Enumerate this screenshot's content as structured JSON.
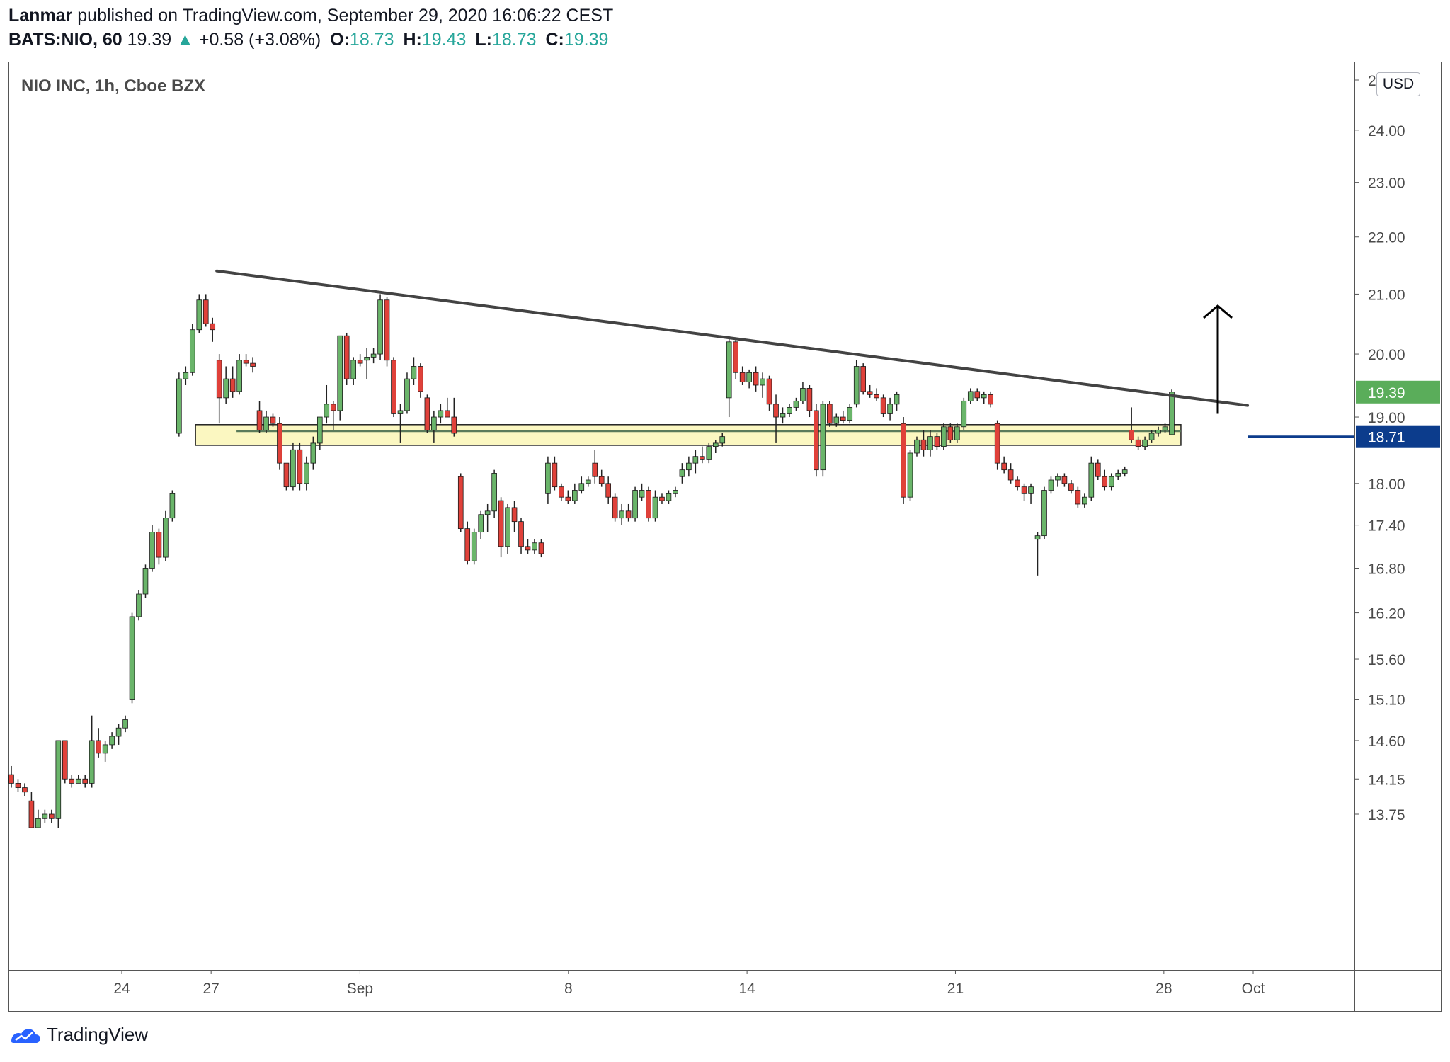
{
  "header": {
    "author": "Lanmar",
    "published_text": "published on TradingView.com, September 29, 2020 16:06:22 CEST",
    "symbol": "BATS:NIO, 60",
    "last": "19.39",
    "change_arrow": "▲",
    "change": "+0.58 (+3.08%)",
    "o_label": "O:",
    "o_value": "18.73",
    "h_label": "H:",
    "h_value": "19.43",
    "l_label": "L:",
    "l_value": "18.73",
    "c_label": "C:",
    "c_value": "19.39"
  },
  "legend": {
    "title": "NIO INC, 1h, Cboe BZX"
  },
  "currency_button": "USD",
  "footer": {
    "brand": "TradingView",
    "logo_icon": "tradingview-logo-icon"
  },
  "colors": {
    "up": "#6ab56a",
    "down": "#e0413a",
    "wick": "#222222",
    "trendline": "#434343",
    "zone_fill": "#fbf7c1",
    "zone_border": "#222222",
    "support_line": "#0c3c8c",
    "last_price_badge": "#5aad5a",
    "axis_text": "#4a4a4a"
  },
  "chart_data": {
    "type": "candlestick",
    "title": "NIO INC, 1h, Cboe BZX",
    "y_scale": "log",
    "ylim": [
      13.6,
      25.5
    ],
    "y_ticks": [
      "25.00",
      "24.00",
      "23.00",
      "22.00",
      "21.00",
      "20.00",
      "19.00",
      "18.00",
      "17.40",
      "16.80",
      "16.20",
      "15.60",
      "15.10",
      "14.60",
      "14.15",
      "13.75"
    ],
    "x_range": [
      "2020-08-20",
      "2020-10-02"
    ],
    "x_ticks": [
      {
        "label": "24",
        "date": "2020-08-24"
      },
      {
        "label": "27",
        "date": "2020-08-27"
      },
      {
        "label": "Sep",
        "date": "2020-09-01"
      },
      {
        "label": "8",
        "date": "2020-09-08"
      },
      {
        "label": "14",
        "date": "2020-09-14"
      },
      {
        "label": "21",
        "date": "2020-09-21"
      },
      {
        "label": "28",
        "date": "2020-09-28"
      },
      {
        "label": "Oct",
        "date": "2020-10-01"
      }
    ],
    "candles_ohlc": [
      [
        14.2,
        14.3,
        14.05,
        14.1
      ],
      [
        14.1,
        14.15,
        14.0,
        14.05
      ],
      [
        14.05,
        14.1,
        13.95,
        14.0
      ],
      [
        13.9,
        14.0,
        13.6,
        13.6
      ],
      [
        13.6,
        13.8,
        13.6,
        13.7
      ],
      [
        13.7,
        13.8,
        13.65,
        13.75
      ],
      [
        13.75,
        13.8,
        13.65,
        13.7
      ],
      [
        13.7,
        14.6,
        13.6,
        14.6
      ],
      [
        14.6,
        14.6,
        14.1,
        14.15
      ],
      [
        14.15,
        14.2,
        14.05,
        14.1
      ],
      [
        14.1,
        14.2,
        14.1,
        14.15
      ],
      [
        14.15,
        14.2,
        14.05,
        14.1
      ],
      [
        14.1,
        14.9,
        14.05,
        14.6
      ],
      [
        14.6,
        14.75,
        14.4,
        14.45
      ],
      [
        14.45,
        14.6,
        14.35,
        14.55
      ],
      [
        14.55,
        14.7,
        14.5,
        14.65
      ],
      [
        14.65,
        14.8,
        14.55,
        14.75
      ],
      [
        14.75,
        14.9,
        14.7,
        14.85
      ],
      [
        15.1,
        16.2,
        15.05,
        16.15
      ],
      [
        16.15,
        16.5,
        16.1,
        16.45
      ],
      [
        16.45,
        16.85,
        16.4,
        16.8
      ],
      [
        16.8,
        17.4,
        16.75,
        17.3
      ],
      [
        17.3,
        17.35,
        16.85,
        16.95
      ],
      [
        16.95,
        17.6,
        16.9,
        17.5
      ],
      [
        17.5,
        17.9,
        17.45,
        17.85
      ],
      [
        18.75,
        19.7,
        18.7,
        19.6
      ],
      [
        19.6,
        19.8,
        19.5,
        19.7
      ],
      [
        19.7,
        20.5,
        19.65,
        20.4
      ],
      [
        20.4,
        21.0,
        20.35,
        20.9
      ],
      [
        20.9,
        21.0,
        20.45,
        20.5
      ],
      [
        20.5,
        20.6,
        20.2,
        20.4
      ],
      [
        19.9,
        20.0,
        18.9,
        19.3
      ],
      [
        19.3,
        19.8,
        19.2,
        19.6
      ],
      [
        19.6,
        19.8,
        19.3,
        19.4
      ],
      [
        19.4,
        20.0,
        19.35,
        19.9
      ],
      [
        19.9,
        20.0,
        19.8,
        19.85
      ],
      [
        19.85,
        19.95,
        19.7,
        19.8
      ],
      [
        19.1,
        19.25,
        18.75,
        18.8
      ],
      [
        18.8,
        19.1,
        18.75,
        19.0
      ],
      [
        19.0,
        19.05,
        18.85,
        18.9
      ],
      [
        18.9,
        19.0,
        18.2,
        18.3
      ],
      [
        18.3,
        18.3,
        17.9,
        17.95
      ],
      [
        17.95,
        18.6,
        17.9,
        18.5
      ],
      [
        18.5,
        18.6,
        17.9,
        18.0
      ],
      [
        18.0,
        18.4,
        17.9,
        18.3
      ],
      [
        18.3,
        18.7,
        18.2,
        18.6
      ],
      [
        18.6,
        19.0,
        18.5,
        19.0
      ],
      [
        19.0,
        19.5,
        18.9,
        19.2
      ],
      [
        19.2,
        19.25,
        18.8,
        19.1
      ],
      [
        19.1,
        20.3,
        18.95,
        20.3
      ],
      [
        20.3,
        20.35,
        19.5,
        19.6
      ],
      [
        19.6,
        19.95,
        19.5,
        19.9
      ],
      [
        19.9,
        20.0,
        19.8,
        19.85
      ],
      [
        19.9,
        20.1,
        19.6,
        19.95
      ],
      [
        19.95,
        20.1,
        19.85,
        20.0
      ],
      [
        20.0,
        21.0,
        19.9,
        20.9
      ],
      [
        20.9,
        20.95,
        19.8,
        19.9
      ],
      [
        19.9,
        19.95,
        19.0,
        19.05
      ],
      [
        19.05,
        19.2,
        18.6,
        19.1
      ],
      [
        19.1,
        19.7,
        19.05,
        19.6
      ],
      [
        19.6,
        19.95,
        19.5,
        19.8
      ],
      [
        19.8,
        19.85,
        19.3,
        19.4
      ],
      [
        19.3,
        19.35,
        18.75,
        18.8
      ],
      [
        18.8,
        19.1,
        18.6,
        19.0
      ],
      [
        19.0,
        19.2,
        18.9,
        19.1
      ],
      [
        19.1,
        19.3,
        19.0,
        19.0
      ],
      [
        19.0,
        19.3,
        18.7,
        18.75
      ],
      [
        18.1,
        18.15,
        17.3,
        17.35
      ],
      [
        17.35,
        17.45,
        16.85,
        16.9
      ],
      [
        16.9,
        17.35,
        16.85,
        17.3
      ],
      [
        17.3,
        17.6,
        17.2,
        17.55
      ],
      [
        17.55,
        17.7,
        17.3,
        17.6
      ],
      [
        17.6,
        18.2,
        17.5,
        18.15
      ],
      [
        17.75,
        17.8,
        16.95,
        17.1
      ],
      [
        17.1,
        17.7,
        17.0,
        17.65
      ],
      [
        17.65,
        17.75,
        17.3,
        17.45
      ],
      [
        17.45,
        17.5,
        17.0,
        17.1
      ],
      [
        17.1,
        17.2,
        17.0,
        17.05
      ],
      [
        17.05,
        17.2,
        17.0,
        17.15
      ],
      [
        17.15,
        17.2,
        16.95,
        17.0
      ],
      [
        17.85,
        18.4,
        17.7,
        18.3
      ],
      [
        18.3,
        18.4,
        17.9,
        17.95
      ],
      [
        17.95,
        18.0,
        17.75,
        17.8
      ],
      [
        17.8,
        17.9,
        17.7,
        17.75
      ],
      [
        17.75,
        18.0,
        17.7,
        17.9
      ],
      [
        17.9,
        18.1,
        17.85,
        18.0
      ],
      [
        18.0,
        18.1,
        17.95,
        18.05
      ],
      [
        18.3,
        18.5,
        18.0,
        18.1
      ],
      [
        18.1,
        18.2,
        17.95,
        18.0
      ],
      [
        18.0,
        18.1,
        17.7,
        17.8
      ],
      [
        17.8,
        17.85,
        17.45,
        17.5
      ],
      [
        17.5,
        17.7,
        17.4,
        17.6
      ],
      [
        17.6,
        17.7,
        17.45,
        17.5
      ],
      [
        17.5,
        17.95,
        17.45,
        17.9
      ],
      [
        17.8,
        18.0,
        17.75,
        17.9
      ],
      [
        17.9,
        17.95,
        17.45,
        17.5
      ],
      [
        17.5,
        17.9,
        17.45,
        17.8
      ],
      [
        17.8,
        17.85,
        17.7,
        17.75
      ],
      [
        17.75,
        17.9,
        17.7,
        17.85
      ],
      [
        17.85,
        17.95,
        17.8,
        17.9
      ],
      [
        18.1,
        18.3,
        18.0,
        18.2
      ],
      [
        18.2,
        18.4,
        18.1,
        18.3
      ],
      [
        18.3,
        18.5,
        18.15,
        18.4
      ],
      [
        18.4,
        18.55,
        18.3,
        18.35
      ],
      [
        18.35,
        18.6,
        18.3,
        18.55
      ],
      [
        18.55,
        18.65,
        18.45,
        18.6
      ],
      [
        18.6,
        18.75,
        18.55,
        18.7
      ],
      [
        19.3,
        20.3,
        19.0,
        20.2
      ],
      [
        20.2,
        20.25,
        19.6,
        19.7
      ],
      [
        19.7,
        19.8,
        19.5,
        19.55
      ],
      [
        19.55,
        19.75,
        19.45,
        19.7
      ],
      [
        19.7,
        19.8,
        19.4,
        19.5
      ],
      [
        19.5,
        19.7,
        19.3,
        19.6
      ],
      [
        19.6,
        19.65,
        19.1,
        19.2
      ],
      [
        19.2,
        19.35,
        18.6,
        19.0
      ],
      [
        19.0,
        19.15,
        18.9,
        19.05
      ],
      [
        19.05,
        19.2,
        19.0,
        19.15
      ],
      [
        19.15,
        19.3,
        19.1,
        19.25
      ],
      [
        19.25,
        19.55,
        19.2,
        19.45
      ],
      [
        19.45,
        19.5,
        19.0,
        19.1
      ],
      [
        19.1,
        19.2,
        18.1,
        18.2
      ],
      [
        18.2,
        19.25,
        18.1,
        19.2
      ],
      [
        19.2,
        19.25,
        18.85,
        18.9
      ],
      [
        18.9,
        19.05,
        18.85,
        19.0
      ],
      [
        19.0,
        19.1,
        18.9,
        18.95
      ],
      [
        18.95,
        19.2,
        18.9,
        19.15
      ],
      [
        19.2,
        19.9,
        19.15,
        19.8
      ],
      [
        19.8,
        19.85,
        19.35,
        19.4
      ],
      [
        19.4,
        19.5,
        19.3,
        19.35
      ],
      [
        19.35,
        19.45,
        19.25,
        19.3
      ],
      [
        19.3,
        19.35,
        19.0,
        19.05
      ],
      [
        19.05,
        19.3,
        18.95,
        19.2
      ],
      [
        19.2,
        19.4,
        19.1,
        19.35
      ],
      [
        18.9,
        19.0,
        17.7,
        17.8
      ],
      [
        17.8,
        18.5,
        17.75,
        18.45
      ],
      [
        18.45,
        18.7,
        18.4,
        18.65
      ],
      [
        18.65,
        18.8,
        18.4,
        18.5
      ],
      [
        18.5,
        18.8,
        18.4,
        18.7
      ],
      [
        18.7,
        18.75,
        18.5,
        18.55
      ],
      [
        18.55,
        18.9,
        18.5,
        18.85
      ],
      [
        18.85,
        18.9,
        18.6,
        18.65
      ],
      [
        18.65,
        18.9,
        18.6,
        18.85
      ],
      [
        18.85,
        19.3,
        18.8,
        19.25
      ],
      [
        19.25,
        19.45,
        19.2,
        19.4
      ],
      [
        19.4,
        19.45,
        19.25,
        19.3
      ],
      [
        19.3,
        19.4,
        19.2,
        19.35
      ],
      [
        19.35,
        19.4,
        19.15,
        19.2
      ],
      [
        18.9,
        18.95,
        18.2,
        18.3
      ],
      [
        18.3,
        18.4,
        18.15,
        18.2
      ],
      [
        18.2,
        18.3,
        18.0,
        18.05
      ],
      [
        18.05,
        18.1,
        17.9,
        17.95
      ],
      [
        17.95,
        18.0,
        17.75,
        17.85
      ],
      [
        17.85,
        18.0,
        17.7,
        17.95
      ],
      [
        17.2,
        17.3,
        16.7,
        17.25
      ],
      [
        17.25,
        17.95,
        17.2,
        17.9
      ],
      [
        17.9,
        18.1,
        17.85,
        18.05
      ],
      [
        18.05,
        18.15,
        17.95,
        18.1
      ],
      [
        18.1,
        18.15,
        17.95,
        18.0
      ],
      [
        18.0,
        18.05,
        17.85,
        17.9
      ],
      [
        17.9,
        17.95,
        17.65,
        17.7
      ],
      [
        17.7,
        17.85,
        17.65,
        17.8
      ],
      [
        17.8,
        18.4,
        17.75,
        18.3
      ],
      [
        18.3,
        18.35,
        18.05,
        18.1
      ],
      [
        18.1,
        18.2,
        17.9,
        17.95
      ],
      [
        17.95,
        18.15,
        17.9,
        18.1
      ],
      [
        18.1,
        18.2,
        18.05,
        18.15
      ],
      [
        18.15,
        18.25,
        18.1,
        18.2
      ],
      [
        18.8,
        19.15,
        18.6,
        18.65
      ],
      [
        18.65,
        18.7,
        18.5,
        18.55
      ],
      [
        18.55,
        18.7,
        18.5,
        18.65
      ],
      [
        18.65,
        18.8,
        18.6,
        18.75
      ],
      [
        18.75,
        18.85,
        18.7,
        18.8
      ],
      [
        18.8,
        18.9,
        18.75,
        18.85
      ],
      [
        18.73,
        19.43,
        18.73,
        19.39
      ]
    ],
    "annotations": {
      "trendline": {
        "from": [
          "2020-08-27",
          21.4
        ],
        "to": [
          "2020-10-02",
          19.18
        ]
      },
      "support_zone": {
        "from": "2020-08-26",
        "to": "2020-09-30",
        "low": 18.6,
        "high": 18.85
      },
      "support_line_price": 18.71,
      "arrow": {
        "date": "2020-09-30",
        "from": 19.05,
        "to": 20.8
      }
    },
    "price_labels": [
      {
        "value": "19.39",
        "price": 19.39
      },
      {
        "value": "18.71",
        "price": 18.71
      }
    ]
  }
}
